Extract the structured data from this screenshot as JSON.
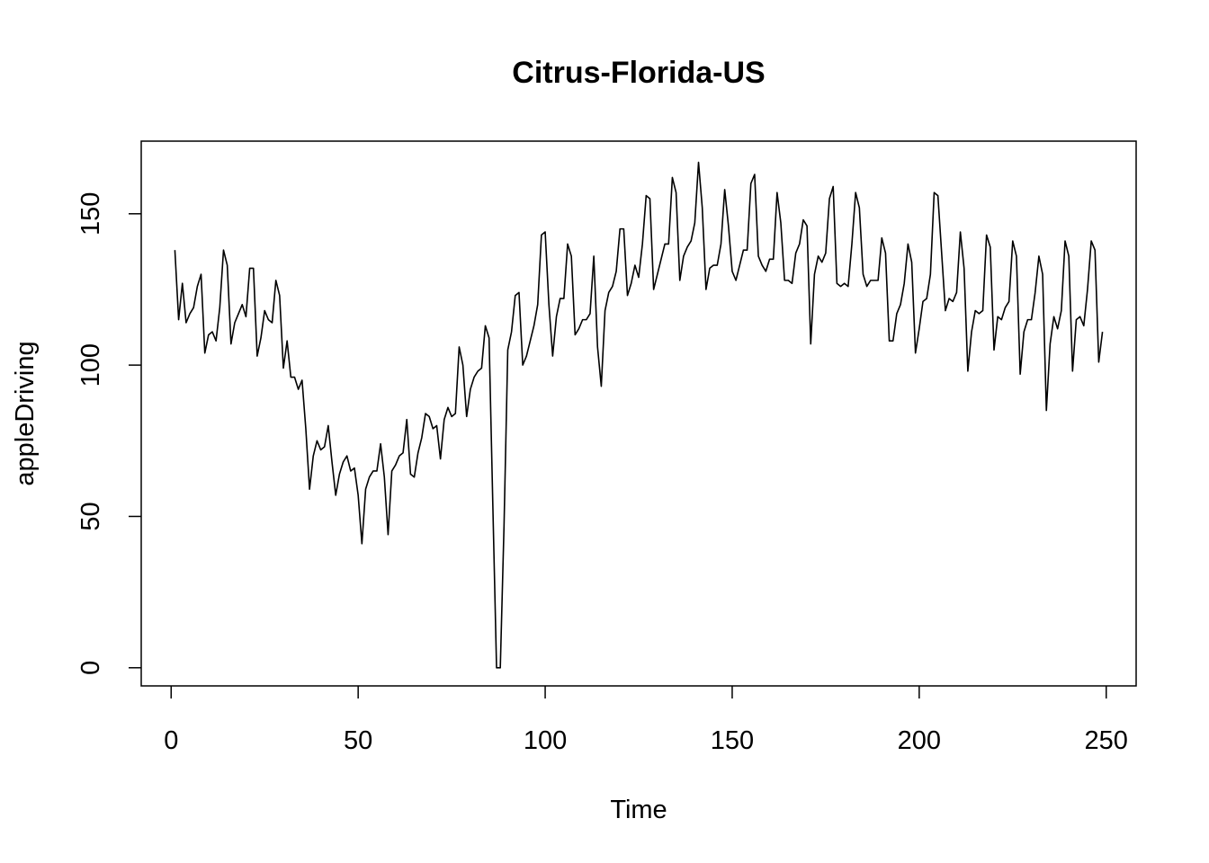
{
  "chart_data": {
    "type": "line",
    "title": "Citrus-Florida-US",
    "xlabel": "Time",
    "ylabel": "appleDriving",
    "xlim": [
      -8,
      258
    ],
    "ylim": [
      -6,
      174
    ],
    "xticks": [
      0,
      50,
      100,
      150,
      200,
      250
    ],
    "yticks": [
      0,
      50,
      100,
      150
    ],
    "grid": false,
    "legend": "none",
    "series_color": "#000000",
    "series": [
      {
        "x_start": 1,
        "x_step": 1,
        "values": [
          138,
          115,
          127,
          114,
          117,
          119,
          126,
          130,
          104,
          110,
          111,
          108,
          119,
          138,
          133,
          107,
          114,
          117,
          120,
          116,
          132,
          132,
          103,
          109,
          118,
          115,
          114,
          128,
          123,
          99,
          108,
          96,
          96,
          92,
          95,
          79,
          59,
          70,
          75,
          72,
          73,
          80,
          68,
          57,
          64,
          68,
          70,
          65,
          66,
          57,
          41,
          59,
          63,
          65,
          65,
          74,
          63,
          44,
          65,
          67,
          70,
          71,
          82,
          64,
          63,
          71,
          76,
          84,
          83,
          79,
          80,
          69,
          82,
          86,
          83,
          84,
          106,
          100,
          83,
          92,
          96,
          98,
          99,
          113,
          109,
          54,
          0,
          0,
          47,
          105,
          111,
          123,
          124,
          100,
          103,
          108,
          113,
          120,
          143,
          144,
          120,
          103,
          116,
          122,
          122,
          140,
          136,
          110,
          112,
          115,
          115,
          117,
          136,
          106,
          93,
          118,
          124,
          126,
          131,
          145,
          145,
          123,
          127,
          133,
          129,
          140,
          156,
          155,
          125,
          130,
          135,
          140,
          140,
          162,
          157,
          128,
          136,
          139,
          141,
          147,
          167,
          152,
          125,
          132,
          133,
          133,
          140,
          158,
          146,
          131,
          128,
          133,
          138,
          138,
          160,
          163,
          136,
          133,
          131,
          135,
          135,
          157,
          147,
          128,
          128,
          127,
          137,
          140,
          148,
          146,
          107,
          130,
          136,
          134,
          137,
          155,
          159,
          127,
          126,
          127,
          126,
          140,
          157,
          152,
          130,
          126,
          128,
          128,
          128,
          142,
          137,
          108,
          108,
          117,
          120,
          127,
          140,
          134,
          104,
          112,
          121,
          122,
          130,
          157,
          156,
          137,
          118,
          122,
          121,
          124,
          144,
          132,
          98,
          111,
          118,
          117,
          118,
          143,
          139,
          105,
          116,
          115,
          119,
          121,
          141,
          136,
          97,
          111,
          115,
          115,
          124,
          136,
          130,
          85,
          107,
          116,
          112,
          118,
          141,
          136,
          98,
          115,
          116,
          113,
          125,
          141,
          138,
          101,
          111
        ]
      }
    ]
  }
}
